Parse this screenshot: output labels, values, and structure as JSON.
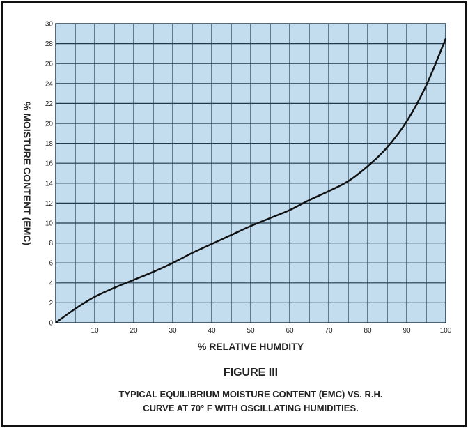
{
  "figure_label": "FIGURE III",
  "caption": {
    "line1": "TYPICAL EQUILIBRIUM MOISTURE CONTENT (EMC) VS. R.H.",
    "line2": "CURVE AT 70° F WITH OSCILLATING HUMIDITIES."
  },
  "colors": {
    "plot_background": "#c3ddef",
    "grid": "#1f3a4a",
    "curve": "#111111",
    "text": "#222222"
  },
  "chart_data": {
    "type": "line",
    "xlabel": "% RELATIVE HUMDITY",
    "ylabel": "% MOISTURE CONTENT (EMC)",
    "xlim": [
      0,
      100
    ],
    "ylim": [
      0,
      30
    ],
    "x_ticks": [
      10,
      20,
      30,
      40,
      50,
      60,
      70,
      80,
      90,
      100
    ],
    "y_ticks": [
      0,
      2,
      4,
      6,
      8,
      10,
      12,
      14,
      16,
      18,
      20,
      22,
      24,
      26,
      28,
      30
    ],
    "grid": true,
    "x_minor_step": 5,
    "y_minor_step": 2,
    "series": [
      {
        "x": [
          0,
          5,
          10,
          15,
          20,
          25,
          30,
          35,
          40,
          45,
          50,
          55,
          60,
          65,
          70,
          75,
          80,
          85,
          90,
          95,
          100
        ],
        "values": [
          0,
          1.4,
          2.6,
          3.5,
          4.3,
          5.1,
          6.0,
          7.0,
          7.9,
          8.8,
          9.7,
          10.5,
          11.3,
          12.3,
          13.2,
          14.2,
          15.7,
          17.6,
          20.2,
          23.8,
          28.5
        ]
      }
    ]
  }
}
